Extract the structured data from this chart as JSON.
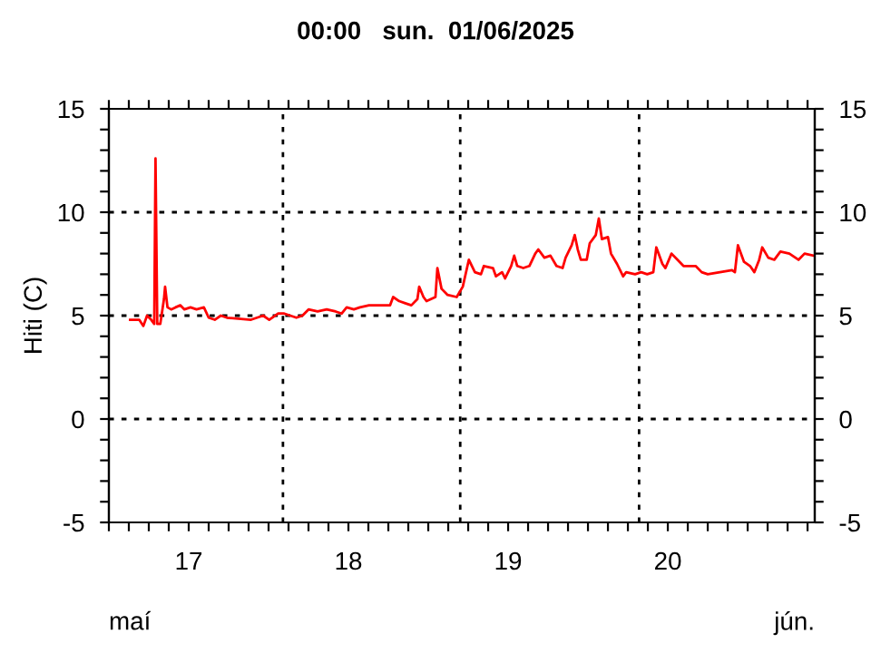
{
  "chart_data": {
    "type": "line",
    "title": "00:00   sun.  01/06/2025",
    "ylabel": "Hiti (C)",
    "annotations": [
      "maí",
      "jún."
    ],
    "x": [
      17.133,
      17.19,
      17.216,
      17.239,
      17.265,
      17.284,
      17.292,
      17.303,
      17.322,
      17.345,
      17.352,
      17.367,
      17.39,
      17.417,
      17.447,
      17.473,
      17.511,
      17.549,
      17.595,
      17.625,
      17.663,
      17.701,
      17.739,
      17.89,
      17.928,
      17.966,
      18.004,
      18.06,
      18.098,
      18.136,
      18.174,
      18.212,
      18.25,
      18.307,
      18.364,
      18.42,
      18.458,
      18.489,
      18.534,
      18.572,
      18.629,
      18.761,
      18.78,
      18.818,
      18.856,
      18.894,
      18.932,
      18.943,
      18.97,
      18.989,
      19.045,
      19.057,
      19.083,
      19.121,
      19.178,
      19.216,
      19.254,
      19.292,
      19.33,
      19.348,
      19.405,
      19.424,
      19.462,
      19.481,
      19.519,
      19.538,
      19.557,
      19.595,
      19.633,
      19.67,
      19.689,
      19.727,
      19.765,
      19.803,
      19.841,
      19.86,
      19.898,
      19.917,
      19.936,
      19.955,
      19.992,
      20.011,
      20.049,
      20.068,
      20.087,
      20.125,
      20.144,
      20.182,
      20.22,
      20.239,
      20.295,
      20.333,
      20.371,
      20.409,
      20.428,
      20.466,
      20.485,
      20.523,
      20.561,
      20.598,
      20.674,
      20.712,
      20.75,
      20.826,
      20.902,
      20.92,
      20.939,
      20.977,
      21.015,
      21.042,
      21.072,
      21.091,
      21.129,
      21.167,
      21.205,
      21.261,
      21.318,
      21.356,
      21.413
    ],
    "series": [
      {
        "color": "#ff0000",
        "values": [
          4.8,
          4.8,
          4.5,
          5.0,
          4.8,
          4.6,
          12.6,
          4.6,
          4.6,
          5.8,
          6.4,
          5.4,
          5.3,
          5.4,
          5.5,
          5.3,
          5.4,
          5.3,
          5.4,
          4.9,
          4.8,
          5.0,
          4.9,
          4.8,
          4.9,
          5.0,
          4.8,
          5.1,
          5.1,
          5.0,
          4.9,
          5.0,
          5.3,
          5.2,
          5.3,
          5.2,
          5.1,
          5.4,
          5.3,
          5.4,
          5.5,
          5.5,
          5.9,
          5.7,
          5.6,
          5.5,
          5.8,
          6.4,
          5.9,
          5.7,
          5.9,
          7.3,
          6.3,
          6.0,
          5.9,
          6.4,
          7.7,
          7.1,
          7.0,
          7.4,
          7.3,
          6.9,
          7.1,
          6.8,
          7.4,
          7.9,
          7.4,
          7.3,
          7.4,
          8.0,
          8.2,
          7.8,
          7.9,
          7.4,
          7.3,
          7.8,
          8.4,
          8.9,
          8.2,
          7.7,
          7.7,
          8.5,
          8.9,
          9.7,
          8.7,
          8.8,
          8.0,
          7.5,
          6.9,
          7.1,
          7.0,
          7.1,
          7.0,
          7.1,
          8.3,
          7.5,
          7.3,
          8.0,
          7.7,
          7.4,
          7.4,
          7.1,
          7.0,
          7.1,
          7.2,
          7.1,
          8.4,
          7.6,
          7.4,
          7.1,
          7.7,
          8.3,
          7.8,
          7.7,
          8.1,
          8.0,
          7.7,
          8.0,
          7.9
        ]
      }
    ],
    "xlim": [
      17,
      21.42
    ],
    "xticks": [
      {
        "value": 17.0,
        "label": null
      },
      {
        "value": 17.125,
        "label": null
      },
      {
        "value": 17.25,
        "label": null
      },
      {
        "value": 17.375,
        "label": null
      },
      {
        "value": 17.5,
        "label": "17"
      },
      {
        "value": 17.625,
        "label": null
      },
      {
        "value": 17.75,
        "label": null
      },
      {
        "value": 17.875,
        "label": null
      },
      {
        "value": 18.0,
        "label": null
      },
      {
        "value": 18.125,
        "label": null
      },
      {
        "value": 18.25,
        "label": null
      },
      {
        "value": 18.375,
        "label": null
      },
      {
        "value": 18.5,
        "label": "18"
      },
      {
        "value": 18.625,
        "label": null
      },
      {
        "value": 18.75,
        "label": null
      },
      {
        "value": 18.875,
        "label": null
      },
      {
        "value": 19.0,
        "label": null
      },
      {
        "value": 19.125,
        "label": null
      },
      {
        "value": 19.25,
        "label": null
      },
      {
        "value": 19.375,
        "label": null
      },
      {
        "value": 19.5,
        "label": "19"
      },
      {
        "value": 19.625,
        "label": null
      },
      {
        "value": 19.75,
        "label": null
      },
      {
        "value": 19.875,
        "label": null
      },
      {
        "value": 20.0,
        "label": null
      },
      {
        "value": 20.125,
        "label": null
      },
      {
        "value": 20.25,
        "label": null
      },
      {
        "value": 20.375,
        "label": null
      },
      {
        "value": 20.5,
        "label": "20"
      },
      {
        "value": 20.625,
        "label": null
      },
      {
        "value": 20.75,
        "label": null
      },
      {
        "value": 20.875,
        "label": null
      },
      {
        "value": 21.0,
        "label": null
      },
      {
        "value": 21.125,
        "label": null
      },
      {
        "value": 21.25,
        "label": null
      },
      {
        "value": 21.375,
        "label": null
      }
    ],
    "ylim": [
      -5,
      15
    ],
    "yticks": [
      -5,
      {
        "value": -4,
        "label": null
      },
      {
        "value": -3,
        "label": null
      },
      {
        "value": -2,
        "label": null
      },
      {
        "value": -1,
        "label": null
      },
      0,
      {
        "value": 1,
        "label": null
      },
      {
        "value": 2,
        "label": null
      },
      {
        "value": 3,
        "label": null
      },
      {
        "value": 4,
        "label": null
      },
      5,
      {
        "value": 6,
        "label": null
      },
      {
        "value": 7,
        "label": null
      },
      {
        "value": 8,
        "label": null
      },
      {
        "value": 9,
        "label": null
      },
      10,
      {
        "value": 11,
        "label": null
      },
      {
        "value": 12,
        "label": null
      },
      {
        "value": 13,
        "label": null
      },
      {
        "value": 14,
        "label": null
      },
      15
    ],
    "y2lim": [
      -5,
      15
    ],
    "y2ticks": [
      -5,
      {
        "value": -4,
        "label": null
      },
      {
        "value": -3,
        "label": null
      },
      {
        "value": -2,
        "label": null
      },
      {
        "value": -1,
        "label": null
      },
      0,
      {
        "value": 1,
        "label": null
      },
      {
        "value": 2,
        "label": null
      },
      {
        "value": 3,
        "label": null
      },
      {
        "value": 4,
        "label": null
      },
      5,
      {
        "value": 6,
        "label": null
      },
      {
        "value": 7,
        "label": null
      },
      {
        "value": 8,
        "label": null
      },
      {
        "value": 9,
        "label": null
      },
      10,
      {
        "value": 11,
        "label": null
      },
      {
        "value": 12,
        "label": null
      },
      {
        "value": 13,
        "label": null
      },
      {
        "value": 14,
        "label": null
      },
      15
    ],
    "ref_lines": [
      {
        "axis": "x",
        "value": 18.09,
        "color": "#000000",
        "line_style": "dotted"
      },
      {
        "axis": "x",
        "value": 19.2,
        "color": "#000000",
        "line_style": "dotted"
      },
      {
        "axis": "x",
        "value": 20.32,
        "color": "#000000",
        "line_style": "dotted"
      },
      {
        "axis": "y",
        "value": 0,
        "color": "#000000",
        "line_style": "dotted"
      },
      {
        "axis": "y",
        "value": 5,
        "color": "#000000",
        "line_style": "dotted"
      },
      {
        "axis": "y",
        "value": 10,
        "color": "#000000",
        "line_style": "dotted"
      }
    ]
  }
}
